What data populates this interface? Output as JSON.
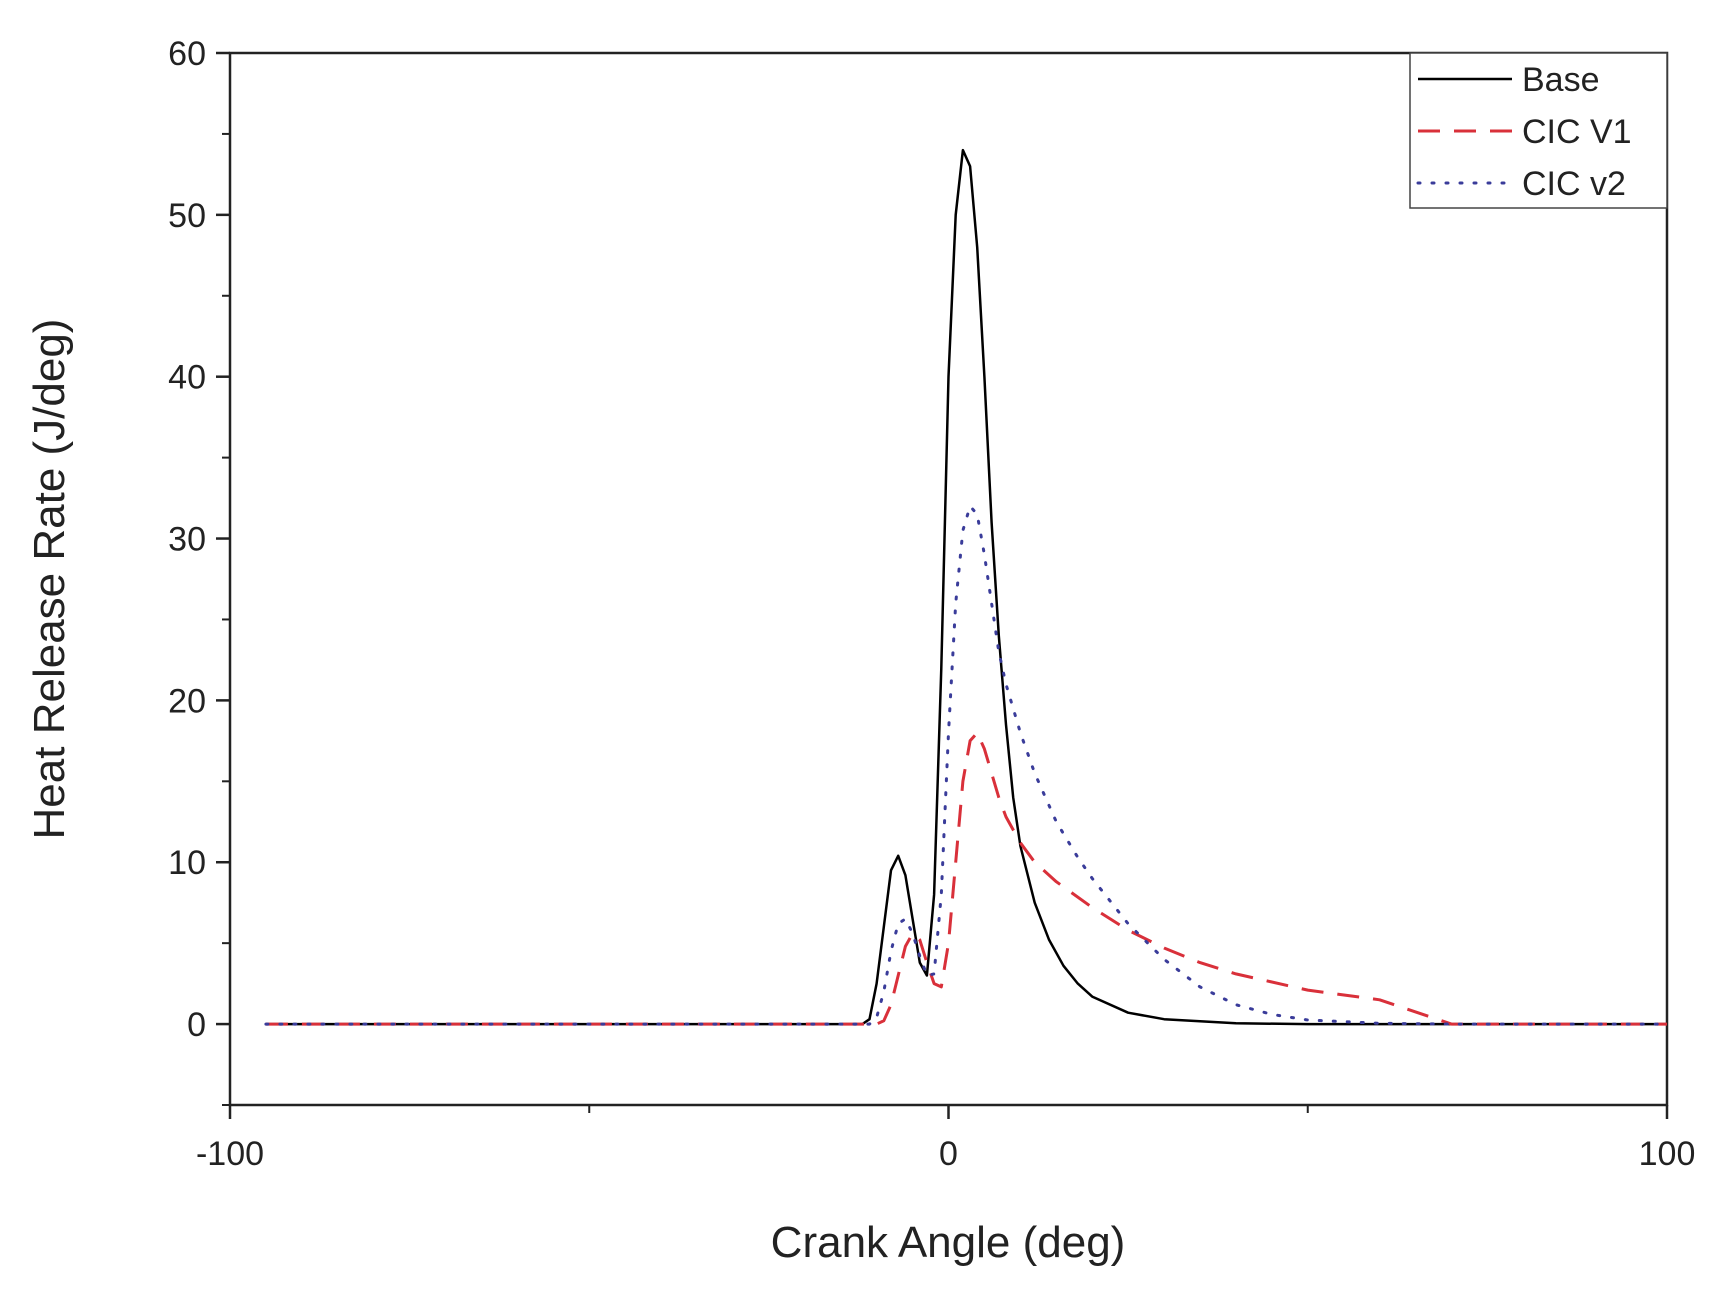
{
  "chart_data": {
    "type": "line",
    "title": "",
    "xlabel": "Crank Angle (deg)",
    "ylabel": "Heat Release Rate (J/deg)",
    "xlim": [
      -100,
      100
    ],
    "ylim": [
      -5,
      60
    ],
    "xticks": [
      -100,
      0,
      100
    ],
    "xticks_minor": [
      -50,
      50
    ],
    "yticks": [
      0,
      10,
      20,
      30,
      40,
      50,
      60
    ],
    "yticks_minor": [
      -5,
      5,
      15,
      25,
      35,
      45,
      55
    ],
    "xtick_labels": [
      "-100",
      "0",
      "100"
    ],
    "ytick_labels": [
      "0",
      "10",
      "20",
      "30",
      "40",
      "50",
      "60"
    ],
    "grid": false,
    "legend_position": "top-right",
    "series": [
      {
        "name": "Base",
        "color": "#000000",
        "dash": "solid",
        "x": [
          -95,
          -60,
          -20,
          -12,
          -11,
          -10,
          -9,
          -8,
          -7,
          -6,
          -5,
          -4,
          -3,
          -2,
          -1,
          0,
          1,
          2,
          3,
          4,
          5,
          6,
          7,
          8,
          9,
          10,
          12,
          14,
          16,
          18,
          20,
          25,
          30,
          40,
          50,
          60,
          70,
          80,
          90,
          100
        ],
        "y": [
          0,
          0,
          0,
          0,
          0.3,
          2.5,
          6,
          9.5,
          10.4,
          9.2,
          6.5,
          3.8,
          3.0,
          8,
          22,
          40,
          50,
          54,
          53,
          48,
          40,
          31,
          24,
          18.5,
          14,
          11,
          7.5,
          5.2,
          3.6,
          2.5,
          1.7,
          0.7,
          0.3,
          0.05,
          0,
          0,
          0,
          0,
          0,
          0
        ]
      },
      {
        "name": "CIC V1",
        "color": "#d9303a",
        "dash": "dashed",
        "x": [
          -95,
          -60,
          -20,
          -10,
          -9,
          -8,
          -7,
          -6,
          -5,
          -4,
          -3,
          -2,
          -1,
          0,
          1,
          2,
          3,
          4,
          5,
          6,
          7,
          8,
          10,
          12,
          15,
          20,
          25,
          30,
          35,
          40,
          50,
          60,
          70,
          80,
          85,
          90,
          100
        ],
        "y": [
          0,
          0,
          0,
          0,
          0.2,
          1.2,
          3,
          4.8,
          5.6,
          5.2,
          3.8,
          2.5,
          2.3,
          5,
          10,
          15,
          17.5,
          18,
          17,
          15.5,
          14,
          12.8,
          11.2,
          10,
          8.8,
          7.2,
          5.8,
          4.7,
          3.8,
          3.1,
          2.1,
          1.5,
          0,
          0,
          0,
          0,
          0
        ]
      },
      {
        "name": "CIC v2",
        "color": "#3a3c9a",
        "dash": "dotted",
        "x": [
          -95,
          -60,
          -20,
          -11,
          -10,
          -9,
          -8,
          -7,
          -6,
          -5,
          -4,
          -3,
          -2,
          -1,
          0,
          1,
          2,
          3,
          4,
          5,
          6,
          7,
          8,
          10,
          12,
          15,
          18,
          20,
          25,
          30,
          35,
          40,
          45,
          50,
          60,
          70,
          80,
          90,
          100
        ],
        "y": [
          0,
          0,
          0,
          0,
          0.4,
          2,
          4.5,
          6.2,
          6.5,
          5.6,
          4.2,
          3.0,
          3.1,
          8,
          18,
          26,
          30.5,
          32,
          31.5,
          29,
          26,
          23,
          21,
          18,
          15.5,
          12.5,
          10.3,
          9,
          6.2,
          4,
          2.3,
          1.2,
          0.6,
          0.25,
          0.05,
          0,
          0,
          0,
          0
        ]
      }
    ]
  }
}
